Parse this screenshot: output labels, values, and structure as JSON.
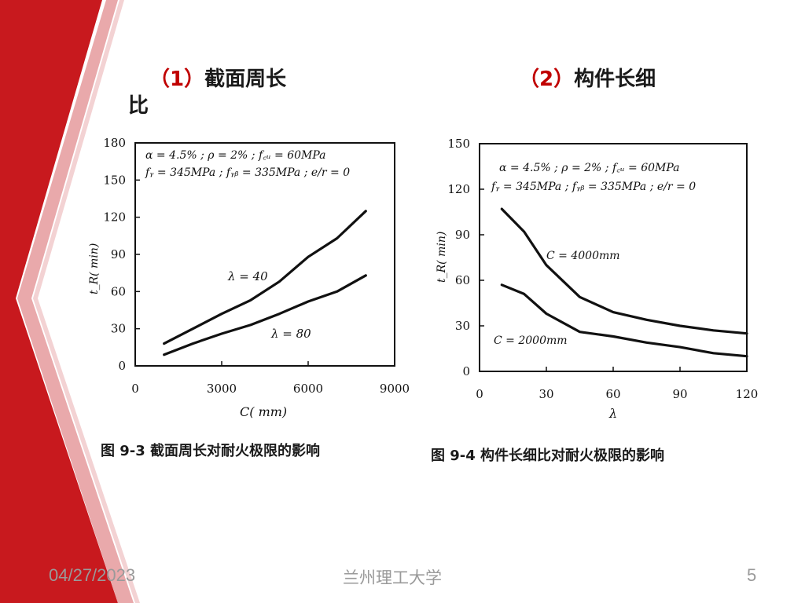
{
  "slide": {
    "heading_left_num": "（1）",
    "heading_left_text": "截面周长",
    "heading_left_wrap": "比",
    "heading_right_num": "（2）",
    "heading_right_text": "构件长细",
    "footer_date": "04/27/2023",
    "footer_university": "兰州理工大学",
    "page_number": "5",
    "accent_color": "#c8191e"
  },
  "chart_data": [
    {
      "type": "line",
      "caption": "图 9-3   截面周长对耐火极限的影响",
      "params_line1": "α = 4.5% ; ρ = 2% ; f꜀ᵤ = 60MPa",
      "params_line2": "fᵧ = 345MPa ; fᵧᵦ = 335MPa ; e/r = 0",
      "xlabel": "C( mm)",
      "ylabel": "t_R( min)",
      "xlim": [
        0,
        9000
      ],
      "ylim": [
        0,
        180
      ],
      "xticks": [
        "0",
        "3000",
        "6000",
        "9000"
      ],
      "yticks": [
        "0",
        "30",
        "60",
        "90",
        "120",
        "150",
        "180"
      ],
      "series": [
        {
          "name": "λ = 40",
          "x": [
            1000,
            2000,
            3000,
            4000,
            5000,
            6000,
            7000,
            8000
          ],
          "values": [
            18,
            30,
            42,
            53,
            68,
            88,
            103,
            125
          ]
        },
        {
          "name": "λ = 80",
          "x": [
            1000,
            2000,
            3000,
            4000,
            5000,
            6000,
            7000,
            8000
          ],
          "values": [
            9,
            18,
            26,
            33,
            42,
            52,
            60,
            73
          ]
        }
      ]
    },
    {
      "type": "line",
      "caption": "图 9-4   构件长细比对耐火极限的影响",
      "params_line1": "α = 4.5% ; ρ = 2% ; f꜀ᵤ = 60MPa",
      "params_line2": "fᵧ = 345MPa ; fᵧᵦ = 335MPa ; e/r = 0",
      "xlabel": "λ",
      "ylabel": "t_R( min)",
      "xlim": [
        0,
        120
      ],
      "ylim": [
        0,
        150
      ],
      "xticks": [
        "0",
        "30",
        "60",
        "90",
        "120"
      ],
      "yticks": [
        "0",
        "30",
        "60",
        "90",
        "120",
        "150"
      ],
      "series": [
        {
          "name": "C = 4000mm",
          "x": [
            10,
            20,
            30,
            45,
            60,
            75,
            90,
            105,
            120
          ],
          "values": [
            107,
            92,
            70,
            49,
            39,
            34,
            30,
            27,
            25
          ]
        },
        {
          "name": "C = 2000mm",
          "x": [
            10,
            20,
            30,
            45,
            60,
            75,
            90,
            105,
            120
          ],
          "values": [
            57,
            51,
            38,
            26,
            23,
            19,
            16,
            12,
            10
          ]
        }
      ]
    }
  ]
}
